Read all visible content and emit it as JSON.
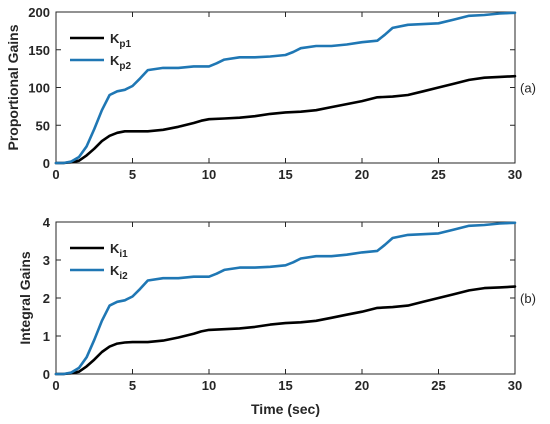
{
  "chart_data": [
    {
      "type": "line",
      "panel_label": "(a)",
      "xlabel": "",
      "ylabel": "Proportional Gains",
      "xlim": [
        0,
        30
      ],
      "ylim": [
        0,
        200
      ],
      "xticks": [
        0,
        5,
        10,
        15,
        20,
        25,
        30
      ],
      "yticks": [
        0,
        50,
        100,
        150,
        200
      ],
      "legend_position": "top-left",
      "grid": false,
      "series": [
        {
          "name": "K",
          "subscript": "p1",
          "color": "#000000",
          "x": [
            0,
            0.5,
            1,
            1.5,
            2,
            2.5,
            3,
            3.5,
            4,
            4.5,
            5,
            6,
            7,
            8,
            9,
            9.5,
            10,
            11,
            12,
            13,
            14,
            15,
            16,
            17,
            18,
            19,
            20,
            21,
            22,
            23,
            24,
            25,
            26,
            27,
            28,
            29,
            30
          ],
          "y": [
            0,
            0,
            1,
            3,
            10,
            19,
            29,
            36,
            40,
            42,
            42,
            42,
            44,
            48,
            53,
            56,
            58,
            59,
            60,
            62,
            65,
            67,
            68,
            70,
            74,
            78,
            82,
            87,
            88,
            90,
            95,
            100,
            105,
            110,
            113,
            114,
            115
          ]
        },
        {
          "name": "K",
          "subscript": "p2",
          "color": "#1f77b4",
          "x": [
            0,
            0.5,
            1,
            1.5,
            2,
            2.5,
            3,
            3.5,
            4,
            4.5,
            5,
            5.5,
            6,
            7,
            8,
            9,
            10,
            10.5,
            11,
            12,
            13,
            14,
            15,
            15.5,
            16,
            17,
            18,
            19,
            20,
            21,
            21.5,
            22,
            23,
            24,
            25,
            26,
            27,
            28,
            29,
            30
          ],
          "y": [
            0,
            0,
            2,
            8,
            22,
            45,
            70,
            90,
            95,
            97,
            102,
            112,
            123,
            126,
            126,
            128,
            128,
            132,
            137,
            140,
            140,
            141,
            143,
            147,
            152,
            155,
            155,
            157,
            160,
            162,
            170,
            179,
            183,
            184,
            185,
            190,
            195,
            196,
            198,
            199
          ]
        }
      ]
    },
    {
      "type": "line",
      "panel_label": "(b)",
      "xlabel": "Time (sec)",
      "ylabel": "Integral Gains",
      "xlim": [
        0,
        30
      ],
      "ylim": [
        0,
        4
      ],
      "xticks": [
        0,
        5,
        10,
        15,
        20,
        25,
        30
      ],
      "yticks": [
        0,
        1,
        2,
        3,
        4
      ],
      "legend_position": "top-left",
      "grid": false,
      "series": [
        {
          "name": "K",
          "subscript": "i1",
          "color": "#000000",
          "x": [
            0,
            0.5,
            1,
            1.5,
            2,
            2.5,
            3,
            3.5,
            4,
            4.5,
            5,
            6,
            7,
            8,
            9,
            9.5,
            10,
            11,
            12,
            13,
            14,
            15,
            16,
            17,
            18,
            19,
            20,
            21,
            22,
            23,
            24,
            25,
            26,
            27,
            28,
            29,
            30
          ],
          "y": [
            0,
            0,
            0.02,
            0.06,
            0.2,
            0.38,
            0.58,
            0.72,
            0.8,
            0.83,
            0.84,
            0.84,
            0.88,
            0.96,
            1.06,
            1.12,
            1.16,
            1.18,
            1.2,
            1.24,
            1.3,
            1.34,
            1.36,
            1.4,
            1.48,
            1.56,
            1.64,
            1.74,
            1.76,
            1.8,
            1.9,
            2.0,
            2.1,
            2.2,
            2.26,
            2.28,
            2.3
          ]
        },
        {
          "name": "K",
          "subscript": "i2",
          "color": "#1f77b4",
          "x": [
            0,
            0.5,
            1,
            1.5,
            2,
            2.5,
            3,
            3.5,
            4,
            4.5,
            5,
            5.5,
            6,
            7,
            8,
            9,
            10,
            10.5,
            11,
            12,
            13,
            14,
            15,
            15.5,
            16,
            17,
            18,
            19,
            20,
            21,
            21.5,
            22,
            23,
            24,
            25,
            26,
            27,
            28,
            29,
            30
          ],
          "y": [
            0,
            0,
            0.04,
            0.16,
            0.44,
            0.9,
            1.4,
            1.8,
            1.9,
            1.94,
            2.04,
            2.24,
            2.46,
            2.52,
            2.52,
            2.56,
            2.56,
            2.64,
            2.74,
            2.8,
            2.8,
            2.82,
            2.86,
            2.94,
            3.04,
            3.1,
            3.1,
            3.14,
            3.2,
            3.24,
            3.4,
            3.58,
            3.66,
            3.68,
            3.7,
            3.8,
            3.9,
            3.92,
            3.96,
            3.98
          ]
        }
      ]
    }
  ]
}
